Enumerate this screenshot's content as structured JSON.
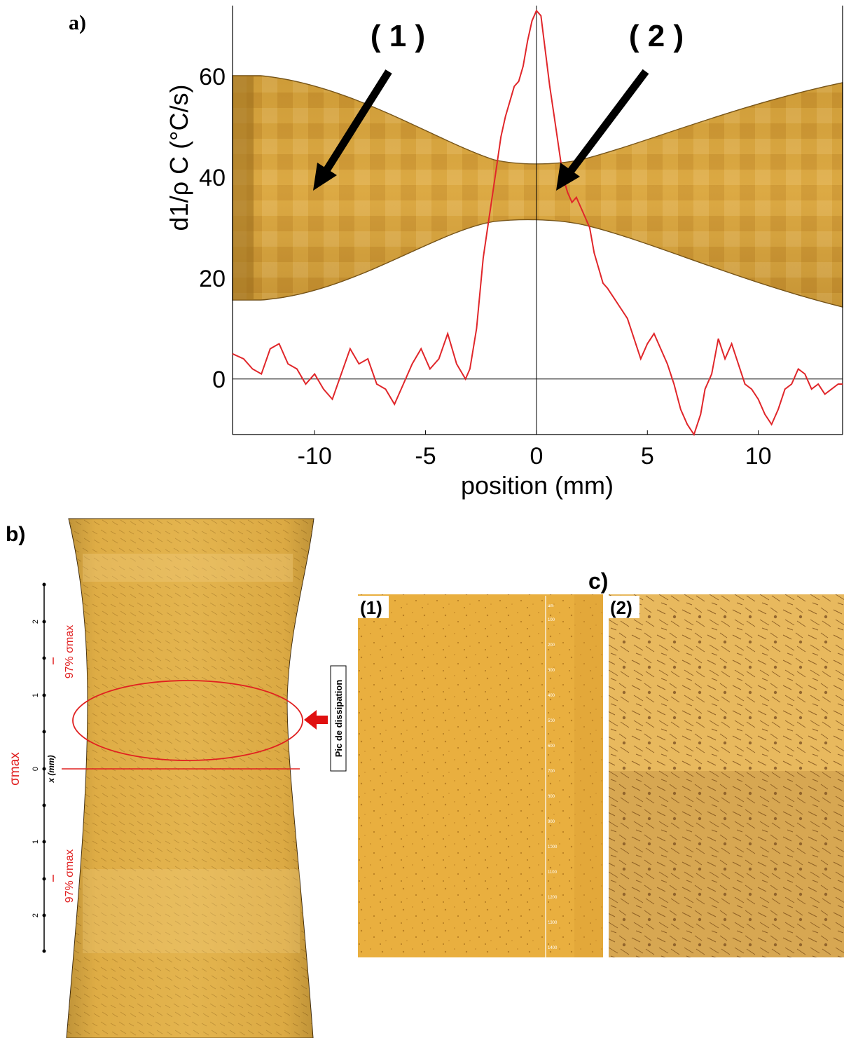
{
  "panels": {
    "a": {
      "label": "a)",
      "callout_1": "( 1 )",
      "callout_2": "( 2 )"
    },
    "b": {
      "label": "b)",
      "axis_label": "x (mm)",
      "ticks": [
        "2",
        "1",
        "0",
        "1",
        "2"
      ],
      "sigma_max": "σmax",
      "sigma_97_upper": "97% σmax",
      "sigma_97_lower": "97% σmax",
      "peak_label": "Pic de dissipation",
      "colors": {
        "annotation": "#e02020",
        "arrow": "#e01010"
      }
    },
    "c": {
      "label": "c)",
      "image_1_label": "(1)",
      "image_2_label": "(2)",
      "scale_unit": "µm",
      "scale_ticks": [
        "100",
        "200",
        "300",
        "400",
        "500",
        "600",
        "700",
        "800",
        "900",
        "1000",
        "1100",
        "1200",
        "1300",
        "1400"
      ]
    }
  },
  "chart_data": {
    "type": "line",
    "title": "",
    "xlabel": "position (mm)",
    "ylabel": "d1/ρ C   (°C/s)",
    "xlim": [
      -13.7,
      13.8
    ],
    "ylim": [
      -11,
      74
    ],
    "x_ticks": [
      -10,
      -5,
      0,
      5,
      10
    ],
    "y_ticks": [
      0,
      20,
      40,
      60
    ],
    "grid": false,
    "reference_lines": {
      "y": 0,
      "x": 0
    },
    "series_color": "#e0262a",
    "series": [
      {
        "x": [
          -13.7,
          -13.2,
          -12.8,
          -12.4,
          -12,
          -11.6,
          -11.2,
          -10.8,
          -10.4,
          -10,
          -9.6,
          -9.2,
          -8.8,
          -8.4,
          -8,
          -7.6,
          -7.2,
          -6.8,
          -6.4,
          -6,
          -5.6,
          -5.2,
          -4.8,
          -4.4,
          -4,
          -3.6,
          -3.2,
          -3,
          -2.7,
          -2.4,
          -2.2,
          -2,
          -1.8,
          -1.6,
          -1.4,
          -1.2,
          -1,
          -0.8,
          -0.6,
          -0.4,
          -0.2,
          0,
          0.2,
          0.4,
          0.6,
          0.8,
          1,
          1.2,
          1.4,
          1.6,
          1.8,
          2,
          2.2,
          2.4,
          2.6,
          2.8,
          3,
          3.2,
          3.5,
          3.8,
          4.1,
          4.4,
          4.7,
          5,
          5.3,
          5.6,
          5.9,
          6.2,
          6.5,
          6.8,
          7.1,
          7.4,
          7.6,
          7.9,
          8.2,
          8.5,
          8.8,
          9.1,
          9.4,
          9.7,
          10,
          10.3,
          10.6,
          10.9,
          11.2,
          11.5,
          11.8,
          12.1,
          12.4,
          12.7,
          13,
          13.3,
          13.6,
          13.8
        ],
        "y": [
          5,
          4,
          2,
          1,
          6,
          7,
          3,
          2,
          -1,
          1,
          -2,
          -4,
          1,
          6,
          3,
          4,
          -1,
          -2,
          -5,
          -1,
          3,
          6,
          2,
          4,
          9,
          3,
          0,
          2,
          10,
          24,
          30,
          36,
          42,
          48,
          52,
          55,
          58,
          59,
          62,
          67,
          71,
          73,
          72,
          65,
          58,
          52,
          46,
          40,
          37,
          35,
          36,
          34,
          32,
          30,
          25,
          22,
          19,
          18,
          16,
          14,
          12,
          8,
          4,
          7,
          9,
          6,
          3,
          -1,
          -6,
          -9,
          -11,
          -7,
          -2,
          1,
          8,
          4,
          7,
          3,
          -1,
          -2,
          -4,
          -7,
          -9,
          -6,
          -2,
          -1,
          2,
          1,
          -2,
          -1,
          -3,
          -2,
          -1,
          -1
        ]
      }
    ]
  }
}
